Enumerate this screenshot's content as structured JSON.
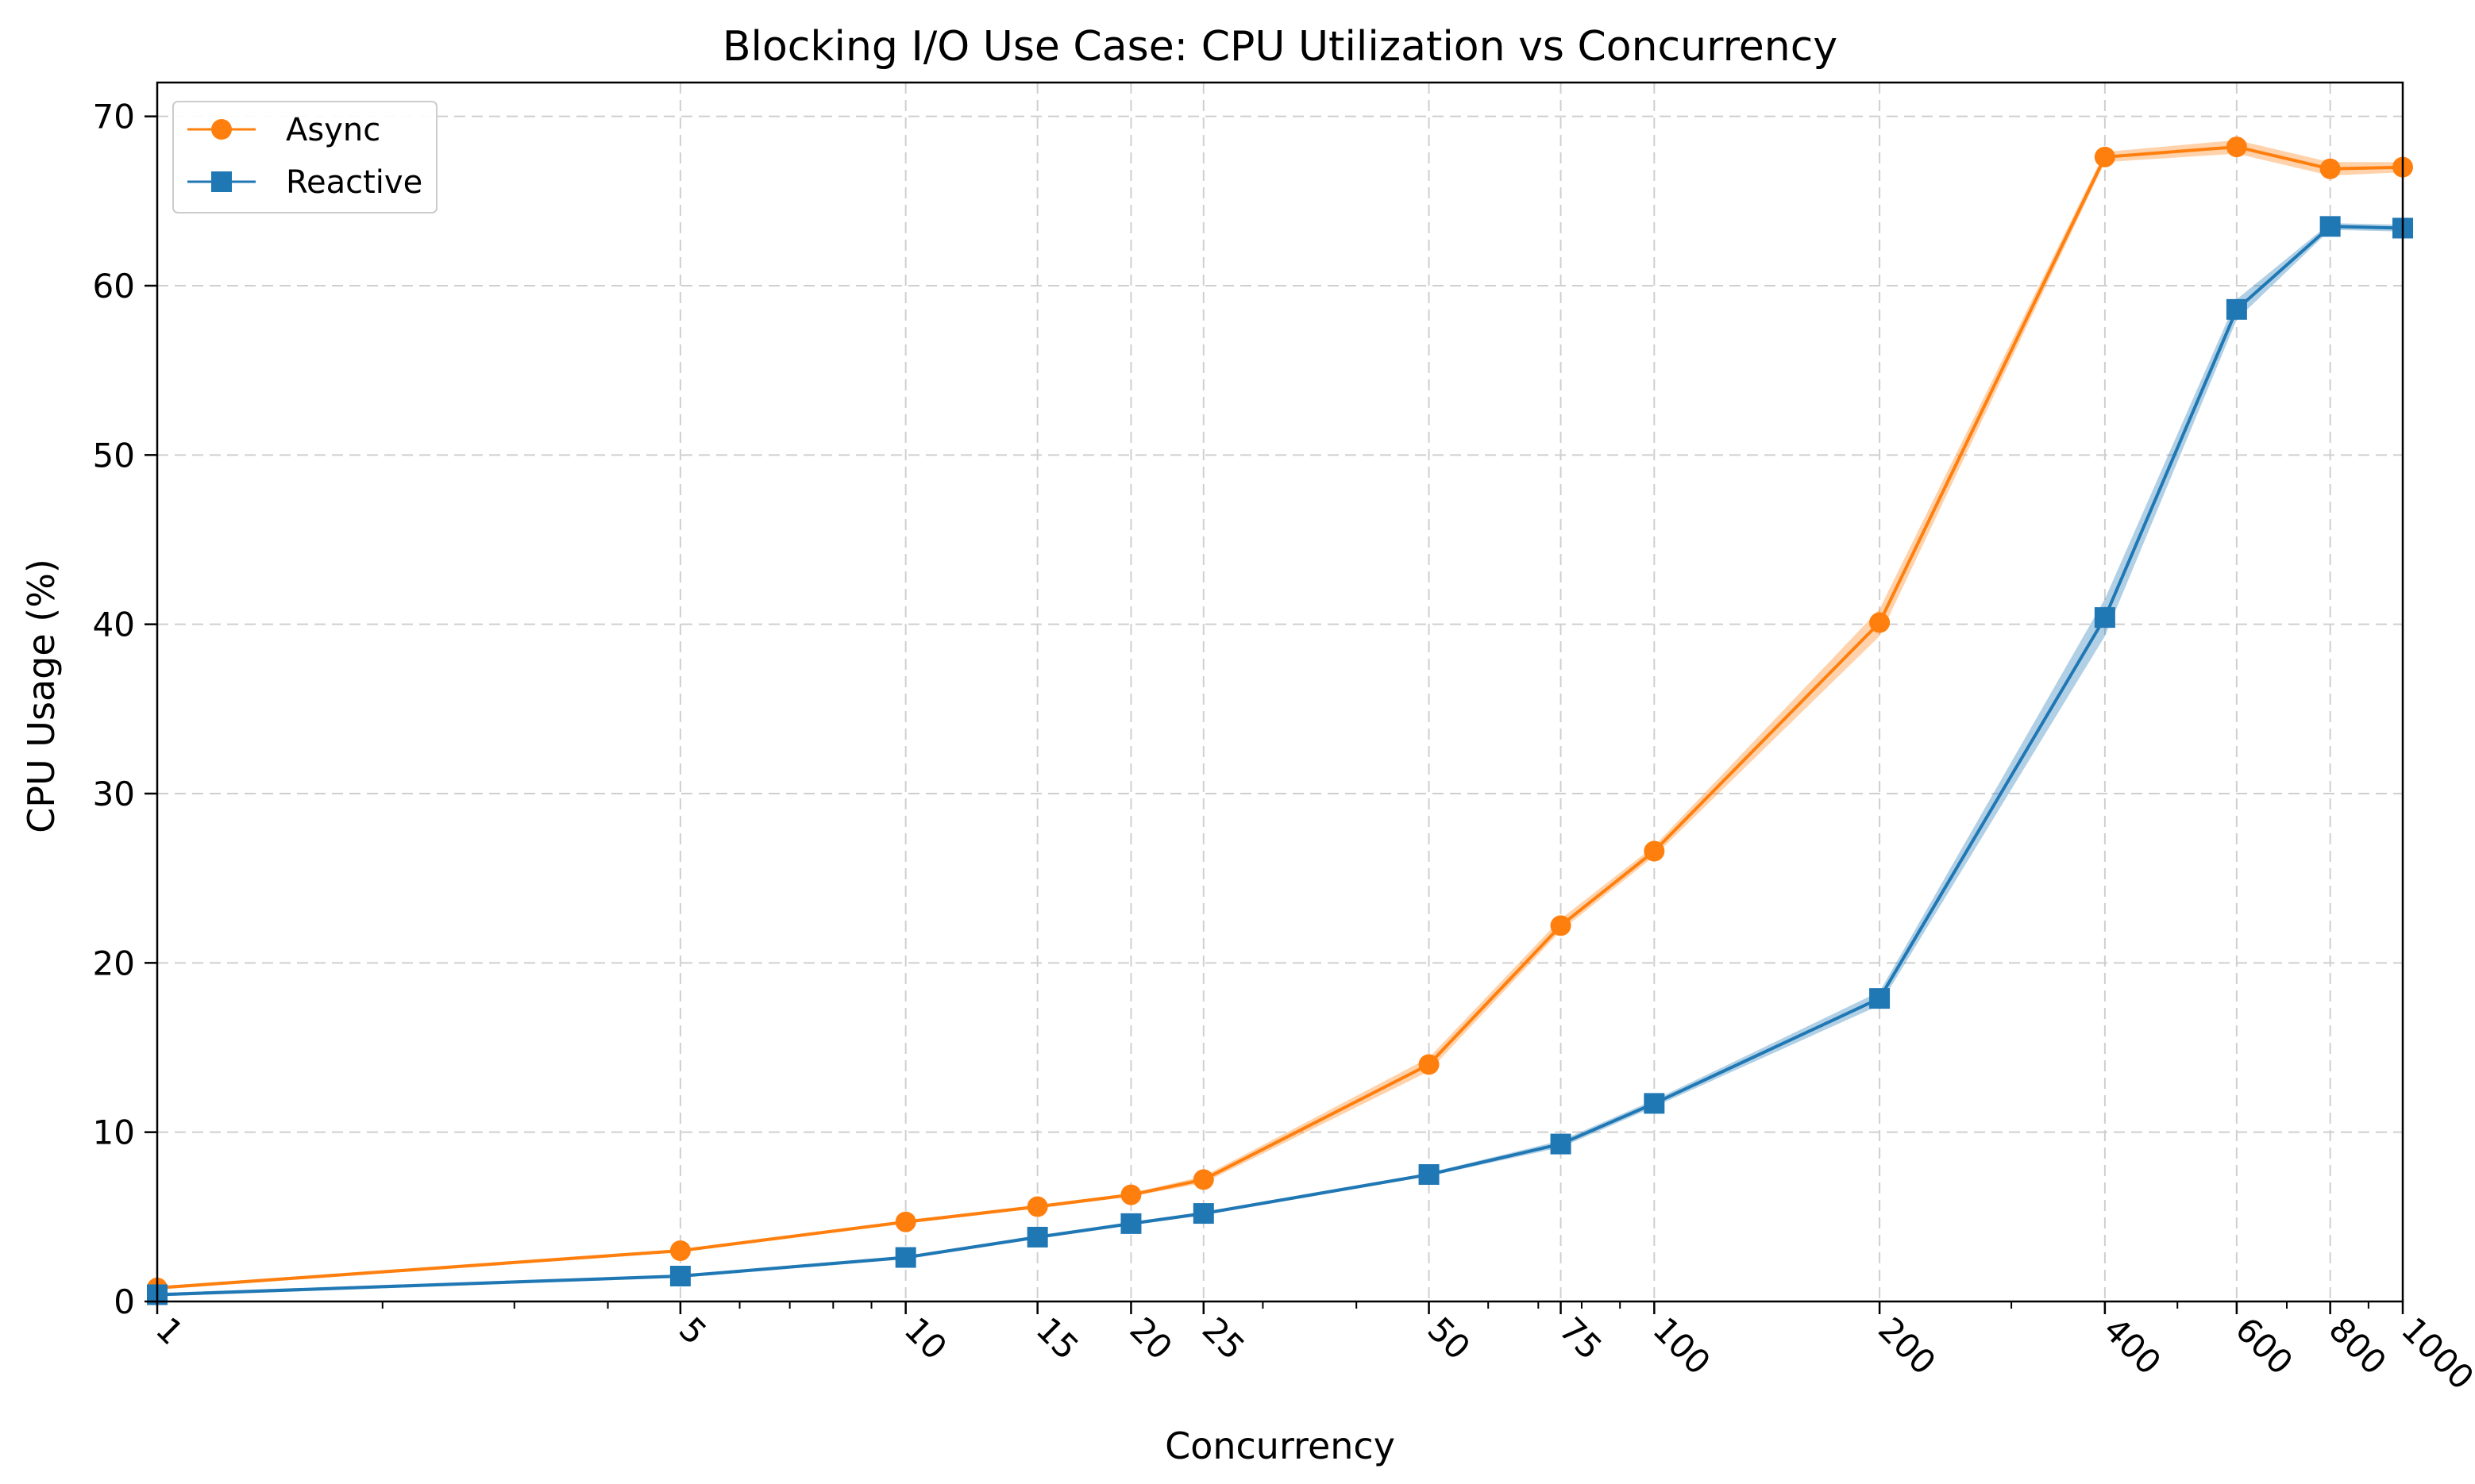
{
  "chart_data": {
    "type": "line",
    "title": "Blocking I/O Use Case: CPU Utilization vs Concurrency",
    "xlabel": "Concurrency",
    "ylabel": "CPU Usage (%)",
    "xscale": "log",
    "xlim": [
      1,
      1000
    ],
    "ylim": [
      0,
      72
    ],
    "grid": true,
    "legend_position": "top-left",
    "x": [
      1,
      5,
      10,
      15,
      20,
      25,
      50,
      75,
      100,
      200,
      400,
      600,
      800,
      1000
    ],
    "x_tick_labels": [
      "1",
      "5",
      "10",
      "15",
      "20",
      "25",
      "50",
      "75",
      "100",
      "200",
      "400",
      "600",
      "800",
      "1000"
    ],
    "y_ticks": [
      0,
      10,
      20,
      30,
      40,
      50,
      60,
      70
    ],
    "y_tick_labels": [
      "0",
      "10",
      "20",
      "30",
      "40",
      "50",
      "60",
      "70"
    ],
    "series": [
      {
        "name": "Async",
        "color": "#ff7f0e",
        "marker": "circle",
        "values": [
          0.8,
          3.0,
          4.7,
          5.6,
          6.3,
          7.2,
          14.0,
          22.2,
          26.6,
          40.1,
          67.6,
          68.2,
          66.9,
          67.0
        ],
        "lower": [
          0.7,
          2.9,
          4.6,
          5.5,
          6.2,
          7.0,
          13.6,
          21.9,
          26.3,
          39.3,
          67.3,
          67.8,
          66.5,
          66.7
        ],
        "upper": [
          0.9,
          3.1,
          4.8,
          5.7,
          6.4,
          7.4,
          14.4,
          22.6,
          26.9,
          40.9,
          67.9,
          68.6,
          67.3,
          67.3
        ]
      },
      {
        "name": "Reactive",
        "color": "#1f77b4",
        "marker": "square",
        "values": [
          0.4,
          1.5,
          2.6,
          3.8,
          4.6,
          5.2,
          7.5,
          9.3,
          11.7,
          17.9,
          40.4,
          58.6,
          63.5,
          63.4
        ],
        "lower": [
          0.3,
          1.4,
          2.5,
          3.7,
          4.5,
          5.1,
          7.4,
          9.1,
          11.5,
          17.5,
          39.3,
          58.0,
          63.3,
          63.2
        ],
        "upper": [
          0.5,
          1.6,
          2.7,
          3.9,
          4.7,
          5.3,
          7.6,
          9.5,
          11.9,
          18.3,
          41.5,
          59.2,
          63.7,
          63.6
        ]
      }
    ]
  }
}
